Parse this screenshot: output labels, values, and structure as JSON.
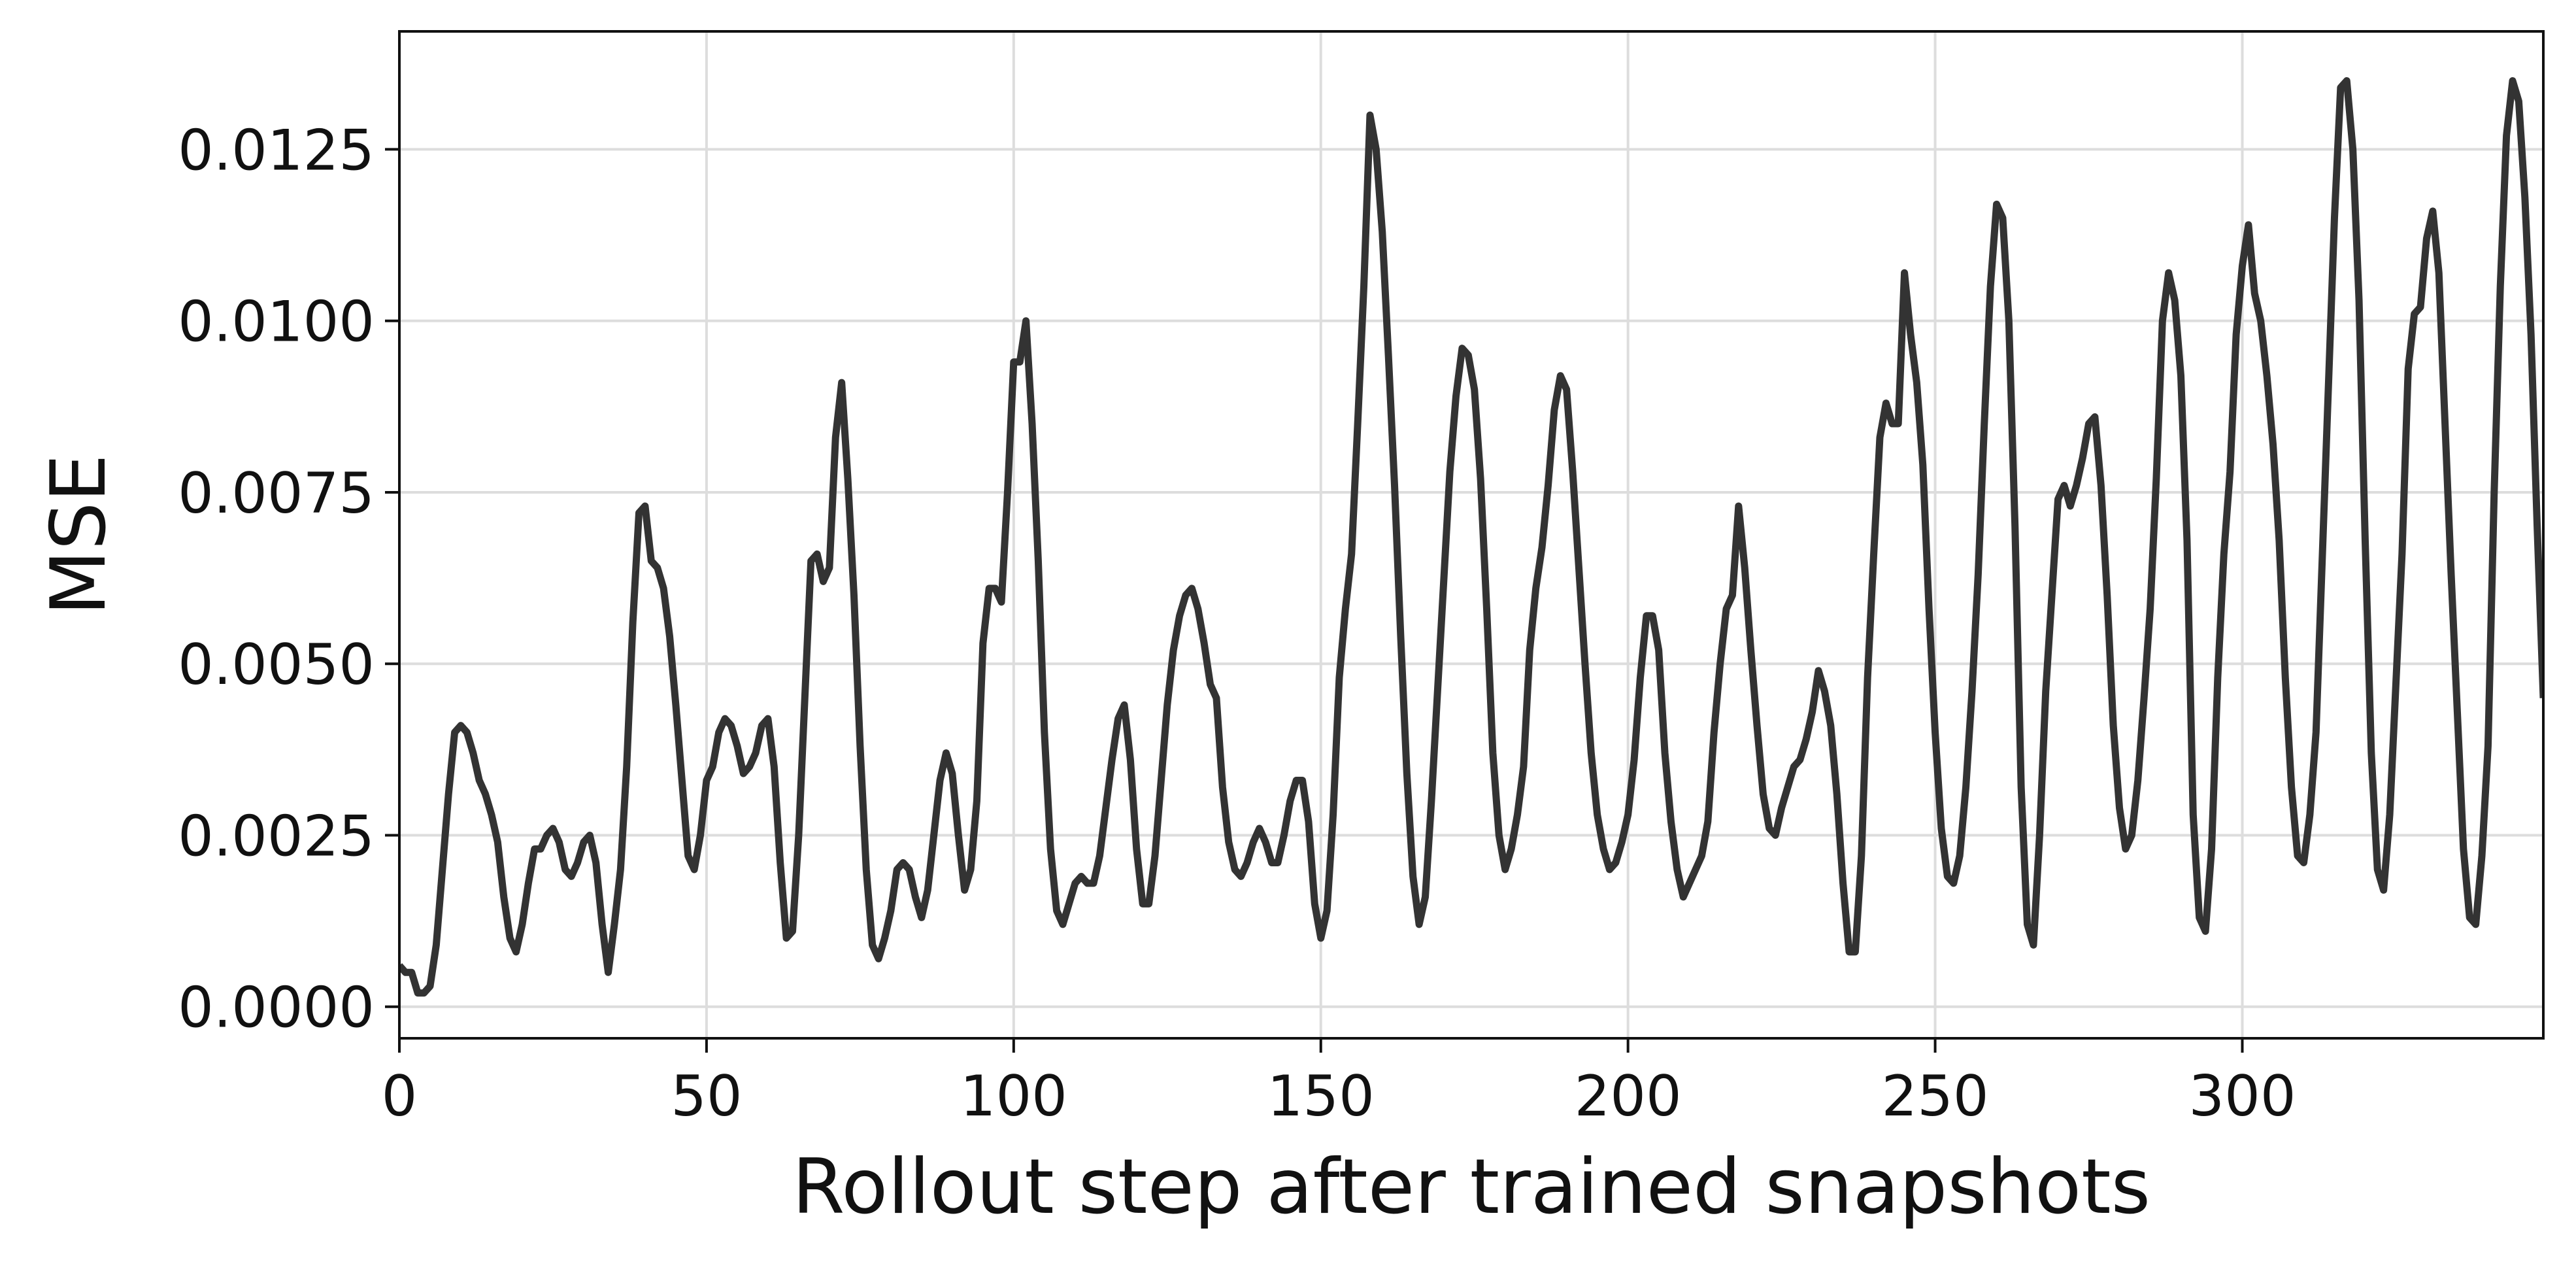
{
  "chart_data": {
    "type": "line",
    "xlabel": "Rollout step after trained snapshots",
    "ylabel": "MSE",
    "x": [
      0,
      1,
      2,
      3,
      4,
      5,
      6,
      7,
      8,
      9,
      10,
      11,
      12,
      13,
      14,
      15,
      16,
      17,
      18,
      19,
      20,
      21,
      22,
      23,
      24,
      25,
      26,
      27,
      28,
      29,
      30,
      31,
      32,
      33,
      34,
      35,
      36,
      37,
      38,
      39,
      40,
      41,
      42,
      43,
      44,
      45,
      46,
      47,
      48,
      49,
      50,
      51,
      52,
      53,
      54,
      55,
      56,
      57,
      58,
      59,
      60,
      61,
      62,
      63,
      64,
      65,
      66,
      67,
      68,
      69,
      70,
      71,
      72,
      73,
      74,
      75,
      76,
      77,
      78,
      79,
      80,
      81,
      82,
      83,
      84,
      85,
      86,
      87,
      88,
      89,
      90,
      91,
      92,
      93,
      94,
      95,
      96,
      97,
      98,
      99,
      100,
      101,
      102,
      103,
      104,
      105,
      106,
      107,
      108,
      109,
      110,
      111,
      112,
      113,
      114,
      115,
      116,
      117,
      118,
      119,
      120,
      121,
      122,
      123,
      124,
      125,
      126,
      127,
      128,
      129,
      130,
      131,
      132,
      133,
      134,
      135,
      136,
      137,
      138,
      139,
      140,
      141,
      142,
      143,
      144,
      145,
      146,
      147,
      148,
      149,
      150,
      151,
      152,
      153,
      154,
      155,
      156,
      157,
      158,
      159,
      160,
      161,
      162,
      163,
      164,
      165,
      166,
      167,
      168,
      169,
      170,
      171,
      172,
      173,
      174,
      175,
      176,
      177,
      178,
      179,
      180,
      181,
      182,
      183,
      184,
      185,
      186,
      187,
      188,
      189,
      190,
      191,
      192,
      193,
      194,
      195,
      196,
      197,
      198,
      199,
      200,
      201,
      202,
      203,
      204,
      205,
      206,
      207,
      208,
      209,
      210,
      211,
      212,
      213,
      214,
      215,
      216,
      217,
      218,
      219,
      220,
      221,
      222,
      223,
      224,
      225,
      226,
      227,
      228,
      229,
      230,
      231,
      232,
      233,
      234,
      235,
      236,
      237,
      238,
      239,
      240,
      241,
      242,
      243,
      244,
      245,
      246,
      247,
      248,
      249,
      250,
      251,
      252,
      253,
      254,
      255,
      256,
      257,
      258,
      259,
      260,
      261,
      262,
      263,
      264,
      265,
      266,
      267,
      268,
      269,
      270,
      271,
      272,
      273,
      274,
      275,
      276,
      277,
      278,
      279,
      280,
      281,
      282,
      283,
      284,
      285,
      286,
      287,
      288,
      289,
      290,
      291,
      292,
      293,
      294,
      295,
      296,
      297,
      298,
      299,
      300,
      301,
      302,
      303,
      304,
      305,
      306,
      307,
      308,
      309,
      310,
      311,
      312,
      313,
      314,
      315,
      316,
      317,
      318,
      319,
      320,
      321,
      322,
      323,
      324,
      325,
      326,
      327,
      328,
      329,
      330,
      331,
      332,
      333,
      334,
      335,
      336,
      337,
      338,
      339,
      340,
      341,
      342,
      343,
      344,
      345,
      346,
      347,
      348,
      349
    ],
    "series": [
      {
        "name": "MSE",
        "color": "#333333",
        "values": [
          0.0006,
          0.0005,
          0.0005,
          0.0002,
          0.0002,
          0.0003,
          0.0009,
          0.002,
          0.0031,
          0.004,
          0.0041,
          0.004,
          0.0037,
          0.0033,
          0.0031,
          0.0028,
          0.0024,
          0.0016,
          0.001,
          0.0008,
          0.0012,
          0.0018,
          0.0023,
          0.0023,
          0.0025,
          0.0026,
          0.0024,
          0.002,
          0.0019,
          0.0021,
          0.0024,
          0.0025,
          0.0021,
          0.0012,
          0.0005,
          0.0012,
          0.002,
          0.0035,
          0.0056,
          0.0072,
          0.0073,
          0.0065,
          0.0064,
          0.0061,
          0.0054,
          0.0044,
          0.0033,
          0.0022,
          0.002,
          0.0025,
          0.0033,
          0.0035,
          0.004,
          0.0042,
          0.0041,
          0.0038,
          0.0034,
          0.0035,
          0.0037,
          0.0041,
          0.0042,
          0.0035,
          0.0021,
          0.001,
          0.0011,
          0.0025,
          0.0045,
          0.0065,
          0.0066,
          0.0062,
          0.0064,
          0.0083,
          0.0091,
          0.0077,
          0.006,
          0.0038,
          0.002,
          0.0009,
          0.0007,
          0.001,
          0.0014,
          0.002,
          0.0021,
          0.002,
          0.0016,
          0.0013,
          0.0017,
          0.0025,
          0.0033,
          0.0037,
          0.0034,
          0.0025,
          0.0017,
          0.002,
          0.003,
          0.0053,
          0.0061,
          0.0061,
          0.0059,
          0.0075,
          0.0094,
          0.0094,
          0.01,
          0.0085,
          0.0065,
          0.004,
          0.0023,
          0.0014,
          0.0012,
          0.0015,
          0.0018,
          0.0019,
          0.0018,
          0.0018,
          0.0022,
          0.0029,
          0.0036,
          0.0042,
          0.0044,
          0.0036,
          0.0023,
          0.0015,
          0.0015,
          0.0022,
          0.0033,
          0.0044,
          0.0052,
          0.0057,
          0.006,
          0.0061,
          0.0058,
          0.0053,
          0.0047,
          0.0045,
          0.0032,
          0.0024,
          0.002,
          0.0019,
          0.0021,
          0.0024,
          0.0026,
          0.0024,
          0.0021,
          0.0021,
          0.0025,
          0.003,
          0.0033,
          0.0033,
          0.0027,
          0.0015,
          0.001,
          0.0014,
          0.0028,
          0.0048,
          0.0058,
          0.0066,
          0.0085,
          0.0105,
          0.013,
          0.0125,
          0.0113,
          0.0095,
          0.0076,
          0.0054,
          0.0034,
          0.0019,
          0.0012,
          0.0016,
          0.003,
          0.0046,
          0.0062,
          0.0078,
          0.0089,
          0.0096,
          0.0095,
          0.009,
          0.0077,
          0.0058,
          0.0037,
          0.0025,
          0.002,
          0.0023,
          0.0028,
          0.0035,
          0.0052,
          0.0061,
          0.0067,
          0.0076,
          0.0087,
          0.0092,
          0.009,
          0.0078,
          0.0064,
          0.005,
          0.0037,
          0.0028,
          0.0023,
          0.002,
          0.0021,
          0.0024,
          0.0028,
          0.0036,
          0.0048,
          0.0057,
          0.0057,
          0.0052,
          0.0037,
          0.0027,
          0.002,
          0.0016,
          0.0018,
          0.002,
          0.0022,
          0.0027,
          0.004,
          0.005,
          0.0058,
          0.006,
          0.0073,
          0.0064,
          0.0052,
          0.0041,
          0.0031,
          0.0026,
          0.0025,
          0.0029,
          0.0032,
          0.0035,
          0.0036,
          0.0039,
          0.0043,
          0.0049,
          0.0046,
          0.0041,
          0.0031,
          0.0018,
          0.0008,
          0.0008,
          0.0022,
          0.0048,
          0.0066,
          0.0083,
          0.0088,
          0.0085,
          0.0085,
          0.0107,
          0.0098,
          0.0091,
          0.0079,
          0.0058,
          0.004,
          0.0026,
          0.0019,
          0.0018,
          0.0022,
          0.0032,
          0.0046,
          0.0063,
          0.0085,
          0.0105,
          0.0117,
          0.0115,
          0.01,
          0.007,
          0.0032,
          0.0012,
          0.0009,
          0.0025,
          0.0046,
          0.006,
          0.0074,
          0.0076,
          0.0073,
          0.0076,
          0.008,
          0.0085,
          0.0086,
          0.0076,
          0.006,
          0.0041,
          0.0029,
          0.0023,
          0.0025,
          0.0033,
          0.0045,
          0.0058,
          0.0077,
          0.01,
          0.0107,
          0.0103,
          0.0092,
          0.0068,
          0.0028,
          0.0013,
          0.0011,
          0.0023,
          0.0048,
          0.0066,
          0.0078,
          0.0098,
          0.0108,
          0.0114,
          0.0104,
          0.01,
          0.0092,
          0.0082,
          0.0068,
          0.0048,
          0.0032,
          0.0022,
          0.0021,
          0.0028,
          0.004,
          0.0065,
          0.009,
          0.0115,
          0.0134,
          0.0135,
          0.0125,
          0.0103,
          0.0068,
          0.0037,
          0.002,
          0.0017,
          0.0028,
          0.0047,
          0.0066,
          0.0093,
          0.0101,
          0.0102,
          0.0112,
          0.0116,
          0.0107,
          0.0085,
          0.0063,
          0.0043,
          0.0023,
          0.0013,
          0.0012,
          0.0022,
          0.0038,
          0.0075,
          0.0105,
          0.0127,
          0.0135,
          0.0132,
          0.0118,
          0.0098,
          0.007,
          0.0045
        ]
      }
    ],
    "xlim": [
      0,
      349
    ],
    "ylim": [
      -0.00046,
      0.01422
    ],
    "xticks": [
      0,
      50,
      100,
      150,
      200,
      250,
      300
    ],
    "yticks": [
      {
        "value": 0,
        "label": "0.0000"
      },
      {
        "value": 0.0025,
        "label": "0.0025"
      },
      {
        "value": 0.005,
        "label": "0.0050"
      },
      {
        "value": 0.0075,
        "label": "0.0075"
      },
      {
        "value": 0.01,
        "label": "0.0100"
      },
      {
        "value": 0.0125,
        "label": "0.0125"
      }
    ],
    "grid": true
  }
}
